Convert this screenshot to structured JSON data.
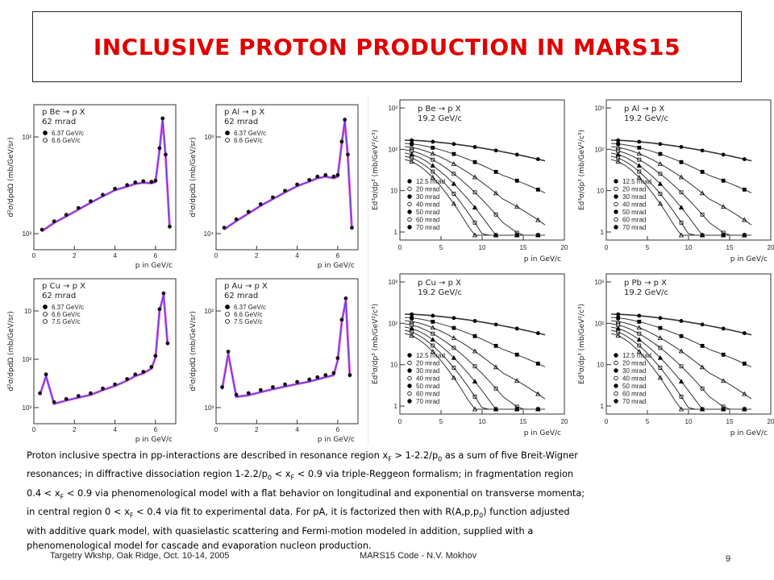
{
  "slide": {
    "title": "INCLUSIVE PROTON PRODUCTION IN MARS15",
    "footer_left": "Targetry Wkshp, Oak Ridge, Oct.  10-14, 2005",
    "footer_mid": "MARS15 Code -  N.V. Mokhov",
    "page_number": "9"
  },
  "description": [
    "Proton inclusive spectra in pp-interactions are described in resonance region x",
    "F",
    " > 1-2.2/p",
    "0",
    " as a sum of five Breit-Wigner",
    "resonances; in diffractive dissociation region 1-2.2/p",
    "0",
    " < x",
    "F",
    " < 0.9 via triple-Reggeon formalism; in fragmentation region",
    "0.4 < x",
    "F",
    " < 0.9 via phenomenological model with a flat behavior on longitudinal and exponential on transverse momenta;",
    "in central region 0 < x",
    "F",
    " < 0.4 via fit to experimental data. For pA, it is factorized then with R(A,p,p",
    "0",
    ") function adjusted",
    "with additive quark model, with quasielastic scattering and Fermi-motion modeled in addition, supplied with a",
    "phenomenological model for cascade and evaporation nucleon production."
  ],
  "chart_data": [
    {
      "type": "scatter",
      "panel": "62mrad-Be",
      "reaction": "p Be → p X",
      "angle": "62 mrad",
      "legend": [
        "6.37 GeV/c",
        "6.6 GeV/c"
      ],
      "ylabel": "d²σ/dpdΩ (mb/GeV/sr)",
      "xlabel": "p in GeV/c",
      "xticks": [
        "0",
        "2",
        "4",
        "6"
      ],
      "yticks": [
        "10²",
        "10³"
      ],
      "scale": "log",
      "x": [
        0.4,
        1.0,
        1.6,
        2.2,
        2.8,
        3.4,
        4.0,
        4.6,
        5.0,
        5.4,
        5.8,
        6.0,
        6.2,
        6.35,
        6.5,
        6.7
      ],
      "y": [
        90,
        120,
        150,
        190,
        240,
        300,
        370,
        420,
        460,
        480,
        470,
        490,
        1500,
        4200,
        1200,
        100
      ]
    },
    {
      "type": "scatter",
      "panel": "62mrad-Al",
      "reaction": "p Al → p X",
      "angle": "62 mrad",
      "legend": [
        "6.37 GeV/c",
        "6.6 GeV/c"
      ],
      "ylabel": "d²σ/dpdΩ (mb/GeV/sr)",
      "xlabel": "p in GeV/c",
      "xticks": [
        "0",
        "2",
        "4",
        "6"
      ],
      "yticks": [
        "10³",
        "10⁴"
      ],
      "scale": "log",
      "x": [
        0.4,
        1.0,
        1.6,
        2.2,
        2.8,
        3.4,
        4.0,
        4.6,
        5.0,
        5.4,
        5.8,
        6.0,
        6.2,
        6.35,
        6.5,
        6.7
      ],
      "y": [
        200,
        260,
        330,
        420,
        520,
        640,
        780,
        900,
        1000,
        1050,
        1000,
        1050,
        3000,
        6000,
        2000,
        200
      ]
    },
    {
      "type": "scatter",
      "panel": "62mrad-Cu",
      "reaction": "p Cu → p X",
      "angle": "62 mrad",
      "legend": [
        "6.37 GeV/c",
        "6.6 GeV/c",
        "7.5 GeV/c"
      ],
      "ylabel": "d²σ/dpdΩ (mb/GeV/sr)",
      "xlabel": "p in GeV/c",
      "xticks": [
        "0",
        "2",
        "4",
        "6"
      ],
      "yticks": [
        "10",
        "10²",
        "10³"
      ],
      "scale": "log",
      "x": [
        0.3,
        0.6,
        1.0,
        1.6,
        2.2,
        2.8,
        3.4,
        4.0,
        4.6,
        5.0,
        5.4,
        5.8,
        6.0,
        6.2,
        6.4,
        6.6
      ],
      "y": [
        60,
        110,
        45,
        50,
        55,
        60,
        70,
        80,
        95,
        110,
        120,
        140,
        200,
        900,
        1500,
        300
      ]
    },
    {
      "type": "scatter",
      "panel": "62mrad-Au",
      "reaction": "p Au → p X",
      "angle": "62 mrad",
      "legend": [
        "6.37 GeV/c",
        "6.6 GeV/c",
        "7.5 GeV/c"
      ],
      "ylabel": "d²σ/dpdΩ (mb/GeV/sr)",
      "xlabel": "p in GeV/c",
      "xticks": [
        "0",
        "2",
        "4",
        "6"
      ],
      "yticks": [
        "10²",
        "10³"
      ],
      "scale": "log",
      "x": [
        0.3,
        0.6,
        1.0,
        1.6,
        2.2,
        2.8,
        3.4,
        4.0,
        4.6,
        5.0,
        5.4,
        5.8,
        6.0,
        6.2,
        6.4,
        6.6
      ],
      "y": [
        300,
        700,
        250,
        260,
        280,
        300,
        320,
        340,
        360,
        380,
        400,
        420,
        600,
        1500,
        2500,
        400
      ]
    },
    {
      "type": "line",
      "panel": "19.2-Be",
      "reaction": "p Be → p X",
      "energy": "19.2 GeV/c",
      "ylabel": "Ed³σ/dp³ (mb/GeV²/c³)",
      "xlabel": "p in GeV/c",
      "xticks": [
        "0",
        "5",
        "10",
        "15",
        "20"
      ],
      "yticks": [
        "1",
        "10",
        "10²",
        "10³"
      ],
      "legend": [
        "12.5 mrad",
        "20 mrad",
        "30 mrad",
        "40 mrad",
        "50 mrad",
        "60 mrad",
        "70 mrad"
      ]
    },
    {
      "type": "line",
      "panel": "19.2-Al",
      "reaction": "p Al → p X",
      "energy": "19.2 GeV/c",
      "ylabel": "Ed³σ/dp³ (mb/GeV²/c³)",
      "xlabel": "p in GeV/c",
      "xticks": [
        "0",
        "5",
        "10",
        "15",
        "20"
      ],
      "yticks": [
        "1",
        "10",
        "10²",
        "10³"
      ],
      "legend": [
        "12.5 mrad",
        "20 mrad",
        "30 mrad",
        "40 mrad",
        "50 mrad",
        "60 mrad",
        "70 mrad"
      ]
    },
    {
      "type": "line",
      "panel": "19.2-Cu",
      "reaction": "p Cu → p X",
      "energy": "19.2 GeV/c",
      "ylabel": "Ed³σ/dp³ (mb/GeV²/c³)",
      "xlabel": "p in GeV/c",
      "xticks": [
        "0",
        "5",
        "10",
        "15",
        "20"
      ],
      "yticks": [
        "1",
        "10",
        "10²",
        "10³"
      ],
      "legend": [
        "12.5 mrad",
        "20 mrad",
        "30 mrad",
        "40 mrad",
        "50 mrad",
        "60 mrad",
        "70 mrad"
      ]
    },
    {
      "type": "line",
      "panel": "19.2-Pb",
      "reaction": "p Pb → p X",
      "energy": "19.2 GeV/c",
      "ylabel": "Ed³σ/dp³ (mb/GeV²/c³)",
      "xlabel": "p in GeV/c",
      "xticks": [
        "0",
        "5",
        "10",
        "15",
        "20"
      ],
      "yticks": [
        "1",
        "10",
        "10²",
        "10³"
      ],
      "legend": [
        "12.5 mrad",
        "20 mrad",
        "30 mrad",
        "40 mrad",
        "50 mrad",
        "60 mrad",
        "70 mrad"
      ]
    }
  ]
}
